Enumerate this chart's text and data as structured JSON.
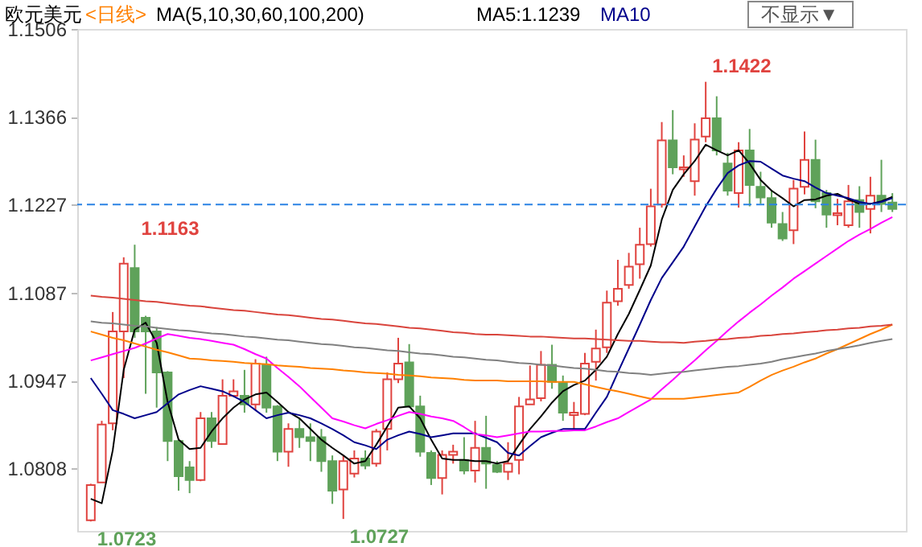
{
  "chart_data": {
    "type": "candlestick",
    "title": "欧元美元",
    "subtitle": "<日线>",
    "categories": [
      null,
      null,
      null,
      null,
      null,
      null,
      null,
      null,
      null,
      null,
      null,
      null,
      null,
      null,
      null,
      null,
      null,
      null,
      null,
      null,
      null,
      null,
      null,
      null,
      null,
      null,
      null,
      null,
      null,
      null,
      null,
      null,
      null,
      null,
      null,
      null,
      null,
      null,
      null,
      null,
      null,
      null,
      null,
      null,
      null,
      null,
      null,
      null,
      null,
      null,
      null,
      null,
      null,
      null,
      null,
      null,
      null,
      null,
      null,
      null,
      null,
      null,
      null,
      null,
      null,
      null,
      null,
      null,
      null,
      null,
      null,
      null,
      null,
      null
    ],
    "ohlc": [
      [
        1.0725,
        1.0783,
        1.0723,
        1.0781
      ],
      [
        1.0785,
        1.0883,
        1.0785,
        1.0877
      ],
      [
        1.0879,
        1.1056,
        1.0868,
        1.1025
      ],
      [
        1.1025,
        1.1143,
        1.0951,
        1.1133
      ],
      [
        1.1126,
        1.1163,
        1.1015,
        1.1025
      ],
      [
        1.1047,
        1.105,
        1.0926,
        1.1025
      ],
      [
        1.1025,
        1.1032,
        1.0904,
        1.096
      ],
      [
        1.096,
        1.0962,
        1.0819,
        1.0851
      ],
      [
        1.0851,
        1.0853,
        1.0772,
        1.0795
      ],
      [
        1.0809,
        1.0819,
        1.0768,
        1.0789
      ],
      [
        1.0789,
        1.0897,
        1.0787,
        1.0887
      ],
      [
        1.0887,
        1.0897,
        1.084,
        1.0851
      ],
      [
        1.0846,
        1.0949,
        1.0845,
        1.0923
      ],
      [
        1.0923,
        1.0949,
        1.0921,
        1.093
      ],
      [
        1.0923,
        1.0964,
        1.0896,
        1.0909
      ],
      [
        1.0909,
        1.0981,
        1.09,
        1.0974
      ],
      [
        1.0972,
        1.0985,
        1.0896,
        1.0904
      ],
      [
        1.0906,
        1.0908,
        1.0819,
        1.0834
      ],
      [
        1.0834,
        1.0879,
        1.081,
        1.087
      ],
      [
        1.087,
        1.0887,
        1.084,
        1.0857
      ],
      [
        1.0857,
        1.0879,
        1.0819,
        1.0851
      ],
      [
        1.0857,
        1.087,
        1.0802,
        1.0819
      ],
      [
        1.0819,
        1.0828,
        1.0751,
        1.0772
      ],
      [
        1.0774,
        1.0828,
        1.0727,
        1.0819
      ],
      [
        1.0799,
        1.0836,
        1.0793,
        1.0823
      ],
      [
        1.0823,
        1.0836,
        1.0806,
        1.0812
      ],
      [
        1.0815,
        1.087,
        1.081,
        1.0866
      ],
      [
        1.087,
        1.096,
        1.0836,
        1.0949
      ],
      [
        1.0949,
        1.1015,
        1.0943,
        1.0974
      ],
      [
        1.0976,
        1.1005,
        1.0904,
        1.0906
      ],
      [
        1.0906,
        1.0923,
        1.0826,
        1.0834
      ],
      [
        1.0832,
        1.0836,
        1.0781,
        1.0792
      ],
      [
        1.0792,
        1.0836,
        1.0766,
        1.0829
      ],
      [
        1.0829,
        1.0845,
        1.0815,
        1.0834
      ],
      [
        1.0821,
        1.0857,
        1.0798,
        1.0804
      ],
      [
        1.0804,
        1.0883,
        1.0785,
        1.084
      ],
      [
        1.084,
        1.0891,
        1.0775,
        1.0815
      ],
      [
        1.0813,
        1.0819,
        1.08,
        1.0802
      ],
      [
        1.0802,
        1.0849,
        1.0789,
        1.0815
      ],
      [
        1.0821,
        1.0921,
        1.0798,
        1.0906
      ],
      [
        1.0909,
        1.0971,
        1.0909,
        1.0917
      ],
      [
        1.0919,
        1.0994,
        1.0914,
        1.0972
      ],
      [
        1.0972,
        1.1004,
        1.0934,
        1.0945
      ],
      [
        1.0943,
        1.0955,
        1.0883,
        1.0896
      ],
      [
        1.0892,
        1.0913,
        1.087,
        1.0896
      ],
      [
        1.0894,
        1.0991,
        1.0892,
        1.0974
      ],
      [
        1.0977,
        1.1028,
        1.0947,
        1.0998
      ],
      [
        1.1,
        1.109,
        1.0991,
        1.1071
      ],
      [
        1.1073,
        1.1139,
        1.1066,
        1.1093
      ],
      [
        1.1099,
        1.115,
        1.1093,
        1.1128
      ],
      [
        1.1132,
        1.119,
        1.1109,
        1.1163
      ],
      [
        1.1164,
        1.1252,
        1.116,
        1.1224
      ],
      [
        1.1227,
        1.1358,
        1.1222,
        1.1329
      ],
      [
        1.1329,
        1.1377,
        1.1275,
        1.1286
      ],
      [
        1.1283,
        1.1305,
        1.1271,
        1.1286
      ],
      [
        1.1264,
        1.1356,
        1.1241,
        1.133
      ],
      [
        1.1335,
        1.1422,
        1.1326,
        1.1364
      ],
      [
        1.1364,
        1.1399,
        1.1305,
        1.1313
      ],
      [
        1.1292,
        1.1309,
        1.1241,
        1.1249
      ],
      [
        1.1245,
        1.1326,
        1.1222,
        1.1313
      ],
      [
        1.1313,
        1.1347,
        1.1224,
        1.1258
      ],
      [
        1.1255,
        1.1279,
        1.1228,
        1.1238
      ],
      [
        1.1237,
        1.125,
        1.119,
        1.1198
      ],
      [
        1.1196,
        1.1215,
        1.1169,
        1.1173
      ],
      [
        1.1186,
        1.1266,
        1.1164,
        1.1252
      ],
      [
        1.1255,
        1.1343,
        1.1243,
        1.1298
      ],
      [
        1.1298,
        1.133,
        1.1221,
        1.1232
      ],
      [
        1.1245,
        1.125,
        1.119,
        1.1211
      ],
      [
        1.121,
        1.1236,
        1.1194,
        1.1213
      ],
      [
        1.1194,
        1.1258,
        1.119,
        1.1232
      ],
      [
        1.1234,
        1.1256,
        1.119,
        1.1215
      ],
      [
        1.122,
        1.1271,
        1.1181,
        1.1241
      ],
      [
        1.1241,
        1.1298,
        1.1215,
        1.1228
      ],
      [
        1.123,
        1.1245,
        1.1215,
        1.122
      ]
    ],
    "colors": [
      "#e0433f",
      "#e0433f",
      "#e0433f",
      "#e0433f",
      "#5fa25a",
      "#5fa25a",
      "#5fa25a",
      "#5fa25a",
      "#5fa25a",
      "#5fa25a",
      "#e0433f",
      "#5fa25a",
      "#e0433f",
      "#e0433f",
      "#5fa25a",
      "#e0433f",
      "#5fa25a",
      "#5fa25a",
      "#e0433f",
      "#5fa25a",
      "#5fa25a",
      "#5fa25a",
      "#5fa25a",
      "#e0433f",
      "#e0433f",
      "#5fa25a",
      "#e0433f",
      "#e0433f",
      "#e0433f",
      "#5fa25a",
      "#5fa25a",
      "#5fa25a",
      "#e0433f",
      "#e0433f",
      "#5fa25a",
      "#e0433f",
      "#5fa25a",
      "#5fa25a",
      "#e0433f",
      "#e0433f",
      "#e0433f",
      "#e0433f",
      "#5fa25a",
      "#5fa25a",
      "#e0433f",
      "#e0433f",
      "#e0433f",
      "#e0433f",
      "#e0433f",
      "#e0433f",
      "#e0433f",
      "#e0433f",
      "#e0433f",
      "#5fa25a",
      "#e0433f",
      "#e0433f",
      "#e0433f",
      "#5fa25a",
      "#5fa25a",
      "#e0433f",
      "#5fa25a",
      "#5fa25a",
      "#5fa25a",
      "#5fa25a",
      "#e0433f",
      "#e0433f",
      "#5fa25a",
      "#5fa25a",
      "#e0433f",
      "#e0433f",
      "#5fa25a",
      "#e0433f",
      "#5fa25a",
      "#5fa25a"
    ],
    "series": [
      {
        "type": "line",
        "name": "MA5:1.1239",
        "color": "#000000",
        "values": [
          1.0759,
          1.0752,
          1.0836,
          1.0964,
          1.1028,
          1.1039,
          1.1007,
          1.0913,
          1.0853,
          1.0838,
          1.084,
          1.0866,
          1.0887,
          1.0904,
          1.0917,
          1.0925,
          1.0928,
          1.0913,
          1.0897,
          1.0887,
          1.087,
          1.0853,
          1.084,
          1.0828,
          1.0815,
          1.0819,
          1.0845,
          1.0874,
          1.0904,
          1.0906,
          1.0887,
          1.0853,
          1.0823,
          1.0821,
          1.0821,
          1.0819,
          1.0819,
          1.0815,
          1.0819,
          1.0845,
          1.087,
          1.089,
          1.0912,
          1.093,
          1.094,
          1.0947,
          1.0964,
          1.0985,
          1.1021,
          1.1053,
          1.1091,
          1.113,
          1.1203,
          1.125,
          1.1275,
          1.1296,
          1.1322,
          1.1313,
          1.1305,
          1.1313,
          1.1292,
          1.1266,
          1.1249,
          1.1237,
          1.1224,
          1.1234,
          1.1235,
          1.1241,
          1.1244,
          1.1235,
          1.1228,
          1.1228,
          1.1232,
          1.1239
        ]
      },
      {
        "type": "line",
        "name": "MA10",
        "color": "#00008b",
        "values": [
          1.0951,
          1.0926,
          1.09,
          1.0894,
          1.0887,
          1.0892,
          1.0897,
          1.0911,
          1.0925,
          1.0932,
          1.0938,
          1.0934,
          1.093,
          1.0922,
          1.0913,
          1.09,
          1.0887,
          1.0892,
          1.0896,
          1.0892,
          1.0887,
          1.0879,
          1.087,
          1.086,
          1.0849,
          1.0844,
          1.0838,
          1.0853,
          1.086,
          1.0866,
          1.0862,
          1.0857,
          1.086,
          1.0863,
          1.0863,
          1.0863,
          1.0856,
          1.0849,
          1.0832,
          1.0828,
          1.0843,
          1.0857,
          1.0864,
          1.087,
          1.087,
          1.087,
          1.0896,
          1.0921,
          1.096,
          1.0998,
          1.1036,
          1.1075,
          1.111,
          1.1135,
          1.116,
          1.1192,
          1.1224,
          1.1252,
          1.1277,
          1.1289,
          1.1296,
          1.1295,
          1.1284,
          1.1273,
          1.1268,
          1.1264,
          1.1254,
          1.1245,
          1.1241,
          1.1237,
          1.1231,
          1.1228,
          1.1231,
          1.1237
        ]
      },
      {
        "type": "line",
        "color": "#ff00ff",
        "values": [
          1.0979,
          1.0984,
          1.0989,
          1.0994,
          1.0999,
          1.1006,
          1.1014,
          1.1021,
          1.1018,
          1.1015,
          1.1013,
          1.101,
          1.1007,
          1.1004,
          1.0997,
          1.0989,
          1.0982,
          1.0967,
          1.0953,
          1.0938,
          1.0921,
          1.0904,
          1.0887,
          1.0882,
          1.0876,
          1.0871,
          1.0878,
          1.0884,
          1.0891,
          1.0897,
          1.0894,
          1.089,
          1.0887,
          1.0883,
          1.0873,
          1.0862,
          1.086,
          1.0857,
          1.086,
          1.0863,
          1.0866,
          1.0866,
          1.0867,
          1.0867,
          1.0868,
          1.0868,
          1.0874,
          1.0881,
          1.0887,
          1.0897,
          1.0907,
          1.0917,
          1.0933,
          1.0948,
          1.0964,
          1.0979,
          1.0995,
          1.101,
          1.1026,
          1.1041,
          1.1055,
          1.1068,
          1.1082,
          1.1095,
          1.1109,
          1.1121,
          1.1133,
          1.1145,
          1.1157,
          1.1169,
          1.1179,
          1.1188,
          1.1198,
          1.1207
        ]
      },
      {
        "type": "line",
        "color": "#ff8000",
        "values": [
          1.1025,
          1.102,
          1.1015,
          1.1011,
          1.1006,
          1.1001,
          1.0996,
          1.0992,
          1.0987,
          1.0982,
          1.0981,
          1.0979,
          1.0978,
          1.0977,
          1.0975,
          1.0974,
          1.0973,
          1.0971,
          1.097,
          1.0969,
          1.0967,
          1.0966,
          1.0965,
          1.0963,
          1.0962,
          1.096,
          1.0959,
          1.0958,
          1.0956,
          1.0955,
          1.0954,
          1.0952,
          1.0951,
          1.095,
          1.0948,
          1.0947,
          1.0947,
          1.0947,
          1.0946,
          1.0946,
          1.0946,
          1.0946,
          1.0945,
          1.0945,
          1.0945,
          1.0941,
          1.0937,
          1.0933,
          1.093,
          1.0926,
          1.0922,
          1.0918,
          1.0918,
          1.0918,
          1.0918,
          1.092,
          1.0922,
          1.0924,
          1.0926,
          1.0928,
          1.0937,
          1.0947,
          1.0956,
          1.0963,
          1.0969,
          1.0976,
          1.0982,
          1.099,
          1.0997,
          1.1005,
          1.1013,
          1.1021,
          1.1028,
          1.1036
        ]
      },
      {
        "type": "line",
        "color": "#808080",
        "values": [
          1.1041,
          1.1039,
          1.1038,
          1.1036,
          1.1034,
          1.1033,
          1.1031,
          1.1029,
          1.1027,
          1.1026,
          1.1024,
          1.1022,
          1.1021,
          1.1019,
          1.1017,
          1.1016,
          1.1014,
          1.1012,
          1.1011,
          1.1009,
          1.1007,
          1.1005,
          1.1004,
          1.1002,
          1.1,
          1.0999,
          1.0997,
          1.0995,
          1.0994,
          1.0992,
          1.099,
          1.0989,
          1.0987,
          1.0985,
          1.0984,
          1.0982,
          1.098,
          1.0979,
          1.0977,
          1.0975,
          1.0974,
          1.0972,
          1.0971,
          1.0969,
          1.0967,
          1.0966,
          1.0964,
          1.0962,
          1.0961,
          1.0959,
          1.0958,
          1.0956,
          1.0958,
          1.096,
          1.0961,
          1.0963,
          1.0965,
          1.0967,
          1.0969,
          1.097,
          1.0972,
          1.0974,
          1.0977,
          1.0981,
          1.0984,
          1.0987,
          1.099,
          1.0994,
          1.0997,
          1.1,
          1.1003,
          1.1007,
          1.101,
          1.1013
        ]
      },
      {
        "type": "line",
        "color": "#d9443c",
        "values": [
          1.1082,
          1.108,
          1.1079,
          1.1077,
          1.1075,
          1.1073,
          1.1072,
          1.107,
          1.1068,
          1.1066,
          1.1065,
          1.1063,
          1.1061,
          1.1059,
          1.1058,
          1.1056,
          1.1054,
          1.1052,
          1.1051,
          1.1049,
          1.1047,
          1.1045,
          1.1044,
          1.1042,
          1.104,
          1.1038,
          1.1037,
          1.1035,
          1.1033,
          1.1031,
          1.103,
          1.1028,
          1.1026,
          1.1024,
          1.1023,
          1.1021,
          1.102,
          1.102,
          1.1019,
          1.1018,
          1.1017,
          1.1017,
          1.1016,
          1.1015,
          1.1014,
          1.1014,
          1.1013,
          1.1012,
          1.1011,
          1.101,
          1.101,
          1.1009,
          1.1008,
          1.1008,
          1.1007,
          1.1009,
          1.101,
          1.1012,
          1.1013,
          1.1015,
          1.1016,
          1.1018,
          1.1019,
          1.1021,
          1.1022,
          1.1024,
          1.1025,
          1.1027,
          1.1028,
          1.103,
          1.1031,
          1.1033,
          1.1034,
          1.1036
        ]
      }
    ],
    "ylim": [
      1.0708,
      1.1506
    ],
    "yticks": [
      1.0808,
      1.0947,
      1.1087,
      1.1227,
      1.1366,
      1.1506
    ],
    "tick_labels": "y",
    "legend": "top",
    "line_style": "solid",
    "ref_lines": [
      {
        "axis": "y",
        "value": 1.1227,
        "color": "#2a82e4",
        "line_style": "dashed"
      }
    ],
    "annotations": [
      "MA(5,10,30,60,100,200)",
      "不显示▼",
      "1.1163",
      "1.1422",
      "1.0723",
      "1.0727"
    ]
  }
}
